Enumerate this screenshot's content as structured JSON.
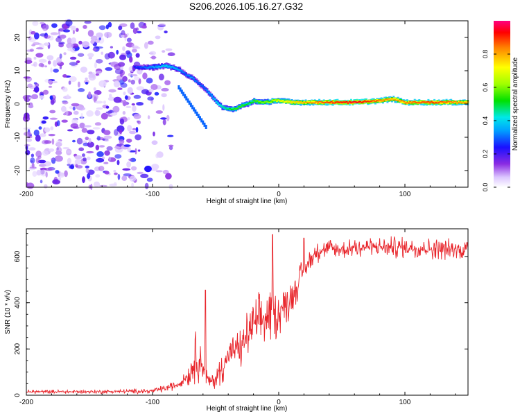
{
  "title": "S206.2026.105.16.27.G32",
  "chart_data": [
    {
      "type": "heatmap",
      "name": "spectrogram",
      "xlabel": "Height of straight line (km)",
      "ylabel": "Frequency (Hz)",
      "xlim": [
        -200,
        150
      ],
      "ylim": [
        -25,
        25
      ],
      "xticks": [
        -200,
        -100,
        0,
        100
      ],
      "xtick_labels": [
        "-200",
        "-100",
        "0",
        "100"
      ],
      "yticks": [
        -20,
        -10,
        0,
        10,
        20
      ],
      "ytick_labels": [
        "-20",
        "-10",
        "0",
        "10",
        "20"
      ],
      "colorbar": {
        "label": "Normalized spectral amplitude",
        "range": [
          0,
          1
        ],
        "ticks": [
          0,
          0.2,
          0.4,
          0.6,
          0.8
        ],
        "tick_labels": [
          "0.0",
          "0.2",
          "0.4",
          "0.6",
          "0.8"
        ]
      },
      "ridge": {
        "description_values": "dominant frequency (Hz) vs height (km)",
        "x": [
          -115,
          -100,
          -90,
          -80,
          -75,
          -70,
          -65,
          -60,
          -55,
          -50,
          -45,
          -40,
          -35,
          -30,
          -25,
          -20,
          -15,
          -10,
          -5,
          0,
          10,
          20,
          40,
          60,
          80,
          90,
          100,
          120,
          150
        ],
        "freq": [
          11,
          11,
          11.5,
          10.5,
          9,
          8,
          6.5,
          5,
          3,
          0.5,
          -1,
          -1.5,
          -1.5,
          -0.5,
          0,
          1,
          0.5,
          0.5,
          1,
          1,
          0.5,
          0.5,
          0.5,
          0.5,
          1,
          1.5,
          0.5,
          0.5,
          0.5
        ],
        "amplitude": [
          0.25,
          0.35,
          0.4,
          0.35,
          0.3,
          0.35,
          0.3,
          0.3,
          0.35,
          0.4,
          0.45,
          0.5,
          0.55,
          0.55,
          0.5,
          0.55,
          0.6,
          0.6,
          0.65,
          0.7,
          0.75,
          0.8,
          0.9,
          0.95,
          0.85,
          0.8,
          0.85,
          0.9,
          0.8
        ]
      },
      "noise_region_x": [
        -200,
        -100
      ]
    },
    {
      "type": "line",
      "name": "snr",
      "xlabel": "Height of straight line (km)",
      "ylabel": "SNR (10 * v/v)",
      "xlim": [
        -200,
        150
      ],
      "ylim": [
        0,
        720
      ],
      "xticks": [
        -200,
        -100,
        0,
        100
      ],
      "xtick_labels": [
        "-200",
        "-100",
        "0",
        "100"
      ],
      "yticks": [
        0,
        200,
        400,
        600
      ],
      "ytick_labels": [
        "0",
        "200",
        "400",
        "600"
      ],
      "color": "#e8242a",
      "envelope": {
        "x": [
          -200,
          -150,
          -100,
          -90,
          -80,
          -75,
          -70,
          -65,
          -60,
          -55,
          -50,
          -45,
          -40,
          -35,
          -30,
          -25,
          -20,
          -15,
          -10,
          -5,
          0,
          5,
          10,
          15,
          20,
          25,
          30,
          40,
          50,
          60,
          80,
          100,
          120,
          150
        ],
        "mean": [
          15,
          15,
          18,
          30,
          45,
          70,
          100,
          180,
          120,
          55,
          70,
          120,
          170,
          190,
          200,
          260,
          300,
          320,
          330,
          340,
          360,
          390,
          430,
          480,
          540,
          590,
          620,
          635,
          630,
          640,
          640,
          640,
          635,
          630
        ],
        "spread": [
          8,
          8,
          10,
          15,
          20,
          30,
          60,
          120,
          60,
          25,
          40,
          70,
          80,
          80,
          90,
          100,
          110,
          120,
          120,
          120,
          100,
          90,
          80,
          70,
          60,
          50,
          45,
          45,
          45,
          45,
          45,
          45,
          45,
          45
        ]
      },
      "spikes": [
        {
          "x": -58,
          "y": 455
        },
        {
          "x": -5,
          "y": 695
        },
        {
          "x": 20,
          "y": 680
        }
      ]
    }
  ]
}
